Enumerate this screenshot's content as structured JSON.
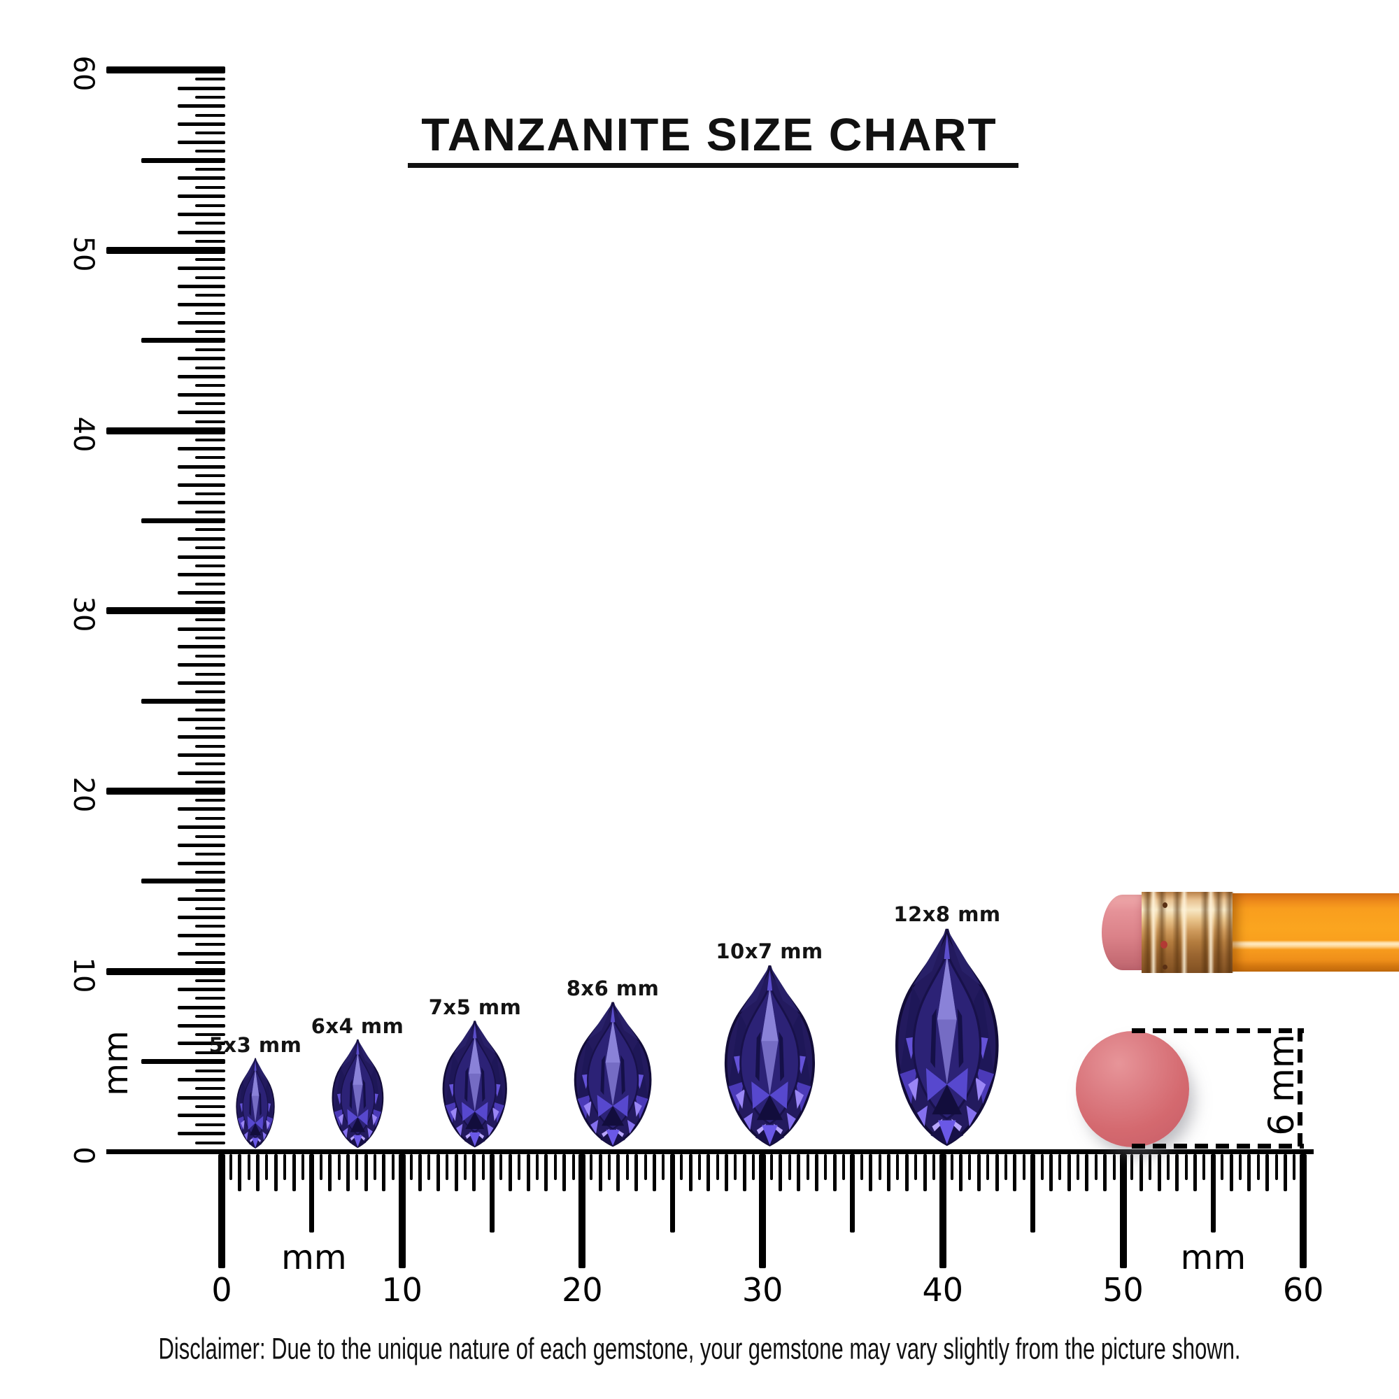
{
  "title": {
    "text": "TANZANITE SIZE CHART"
  },
  "gems": [
    {
      "label": "5x3 mm",
      "length_mm": 5,
      "width_mm": 3
    },
    {
      "label": "6x4 mm",
      "length_mm": 6,
      "width_mm": 4
    },
    {
      "label": "7x5 mm",
      "length_mm": 7,
      "width_mm": 5
    },
    {
      "label": "8x6 mm",
      "length_mm": 8,
      "width_mm": 6
    },
    {
      "label": "10x7 mm",
      "length_mm": 10,
      "width_mm": 7
    },
    {
      "label": "12x8 mm",
      "length_mm": 12,
      "width_mm": 8
    }
  ],
  "vertical_ruler": {
    "unit": "mm",
    "labels": [
      "60",
      "50",
      "40",
      "30",
      "20",
      "10",
      "0"
    ]
  },
  "horizontal_ruler": {
    "unit_left": "mm",
    "unit_right": "mm",
    "labels": [
      "0",
      "10",
      "20",
      "30",
      "40",
      "50",
      "60"
    ]
  },
  "eraser_measurement": {
    "text": "6 mm"
  },
  "disclaimer": "Disclaimer: Due to the unique nature of each gemstone, your gemstone may vary slightly from the picture shown.",
  "colors": {
    "ink": "#000000",
    "gem_dark_rim": "#120C38",
    "gem_base": "#231A5E",
    "gem_table": "#2C2276",
    "gem_kite_light": "#8A82D8",
    "gem_flash_violet": "#6C59E6",
    "gem_flash_lavender": "#B7A5FB",
    "pencil_body_orange": "#F99E1E",
    "pencil_ferrule_brass": "#CE9A5C",
    "pencil_eraser_pink": "#DB8289",
    "round_eraser_salmon": "#D4696F"
  }
}
